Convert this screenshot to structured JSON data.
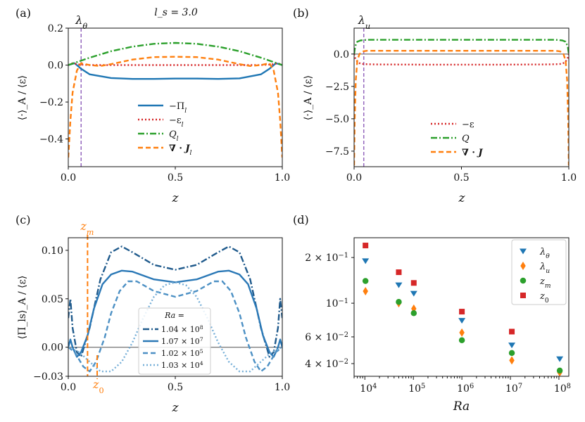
{
  "chart_data": [
    {
      "panel": "(a)",
      "type": "line",
      "title": "l_s = 3.0",
      "xlabel": "z",
      "ylabel": "⟨·⟩_A / ⟨ε⟩",
      "xlim": [
        0.0,
        1.0
      ],
      "ylim": [
        -0.55,
        0.2
      ],
      "xticks": [
        "0.0",
        "0.5",
        "1.0"
      ],
      "yticks": [
        "0.2",
        "0.0",
        "−0.2",
        "−0.4"
      ],
      "vline": {
        "label": "λθ",
        "x": 0.06
      },
      "series": [
        {
          "name": "−Π_ls",
          "x": [
            0,
            0.03,
            0.06,
            0.1,
            0.2,
            0.3,
            0.4,
            0.5,
            0.6,
            0.7,
            0.8,
            0.9,
            0.94,
            0.97,
            1.0
          ],
          "y": [
            0.0,
            0.01,
            -0.02,
            -0.05,
            -0.07,
            -0.075,
            -0.075,
            -0.073,
            -0.073,
            -0.075,
            -0.072,
            -0.05,
            -0.02,
            0.01,
            0.0
          ]
        },
        {
          "name": "−ε_ls",
          "x": [
            0,
            0.02,
            0.05,
            0.1,
            0.3,
            0.5,
            0.7,
            0.9,
            0.95,
            0.98,
            1.0
          ],
          "y": [
            0.0,
            0.01,
            0.003,
            0.0,
            0.0,
            0.0,
            0.0,
            0.0,
            0.003,
            0.01,
            0.0
          ]
        },
        {
          "name": "Q_ls",
          "x": [
            0,
            0.1,
            0.2,
            0.3,
            0.4,
            0.5,
            0.6,
            0.7,
            0.8,
            0.9,
            1.0
          ],
          "y": [
            0.0,
            0.04,
            0.075,
            0.1,
            0.115,
            0.12,
            0.115,
            0.1,
            0.075,
            0.04,
            0.0
          ]
        },
        {
          "name": "∇·J_ls",
          "x": [
            0,
            0.005,
            0.01,
            0.02,
            0.04,
            0.06,
            0.1,
            0.15,
            0.2,
            0.3,
            0.4,
            0.5,
            0.6,
            0.7,
            0.8,
            0.85,
            0.9,
            0.94,
            0.96,
            0.98,
            0.99,
            0.995,
            1.0
          ],
          "y": [
            -0.5,
            -0.4,
            -0.3,
            -0.15,
            -0.03,
            0.01,
            0.0,
            -0.005,
            0.005,
            0.03,
            0.043,
            0.045,
            0.043,
            0.03,
            0.005,
            -0.005,
            0.0,
            0.01,
            -0.03,
            -0.15,
            -0.3,
            -0.4,
            -0.5
          ]
        }
      ]
    },
    {
      "panel": "(b)",
      "type": "line",
      "xlabel": "z",
      "ylabel": "⟨·⟩_A / ⟨ε⟩",
      "xlim": [
        0.0,
        1.0
      ],
      "ylim": [
        -8.7,
        2.0
      ],
      "xticks": [
        "0.0",
        "0.5",
        "1.0"
      ],
      "yticks": [
        "0.0",
        "−2.5",
        "−5.0",
        "−7.5"
      ],
      "vline": {
        "label": "λu",
        "x": 0.045
      },
      "series": [
        {
          "name": "−ε",
          "x": [
            0,
            0.005,
            0.015,
            0.03,
            0.05,
            0.1,
            0.3,
            0.5,
            0.7,
            0.9,
            0.95,
            0.97,
            0.985,
            0.995,
            1.0
          ],
          "y": [
            0.0,
            -0.3,
            -0.6,
            -0.75,
            -0.78,
            -0.8,
            -0.82,
            -0.82,
            -0.82,
            -0.8,
            -0.78,
            -0.75,
            -0.6,
            -0.3,
            0.0
          ]
        },
        {
          "name": "Q",
          "x": [
            0,
            0.005,
            0.015,
            0.03,
            0.06,
            0.5,
            0.94,
            0.97,
            0.985,
            0.995,
            1.0
          ],
          "y": [
            0.0,
            0.6,
            0.95,
            1.05,
            1.1,
            1.1,
            1.1,
            1.05,
            0.95,
            0.6,
            0.0
          ]
        },
        {
          "name": "∇·J",
          "x": [
            0,
            0.003,
            0.008,
            0.015,
            0.025,
            0.04,
            0.06,
            0.5,
            0.94,
            0.96,
            0.975,
            0.985,
            0.992,
            0.997,
            1.0
          ],
          "y": [
            -8.6,
            -5.0,
            -2.0,
            -0.5,
            0.0,
            0.2,
            0.25,
            0.25,
            0.25,
            0.2,
            0.0,
            -0.5,
            -2.0,
            -5.0,
            -8.6
          ]
        }
      ],
      "zero_line": true
    },
    {
      "panel": "(c)",
      "type": "line",
      "xlabel": "z",
      "ylabel": "⟨Π_ls⟩_A / ⟨ε⟩",
      "xlim": [
        0.0,
        1.0
      ],
      "ylim": [
        -0.03,
        0.113
      ],
      "xticks": [
        "0.0",
        "0.5",
        "1.0"
      ],
      "yticks": [
        "0.10",
        "0.05",
        "0.00",
        "−0.03"
      ],
      "legend_title": "Ra =",
      "markers": [
        {
          "label": "z_m",
          "x": 0.09
        },
        {
          "label": "z_0",
          "x": 0.135
        }
      ],
      "series": [
        {
          "name": "1.04 × 10^8",
          "x": [
            0,
            0.01,
            0.02,
            0.04,
            0.06,
            0.1,
            0.15,
            0.2,
            0.25,
            0.3,
            0.4,
            0.5,
            0.6,
            0.7,
            0.75,
            0.8,
            0.85,
            0.9,
            0.94,
            0.96,
            0.98,
            0.99,
            1.0
          ],
          "y": [
            0.03,
            0.05,
            0.02,
            -0.005,
            -0.01,
            0.02,
            0.07,
            0.098,
            0.104,
            0.098,
            0.085,
            0.08,
            0.085,
            0.098,
            0.104,
            0.098,
            0.07,
            0.02,
            -0.01,
            -0.005,
            0.02,
            0.05,
            0.03
          ]
        },
        {
          "name": "1.07 × 10^7",
          "x": [
            0,
            0.01,
            0.02,
            0.04,
            0.06,
            0.09,
            0.12,
            0.16,
            0.2,
            0.25,
            0.3,
            0.4,
            0.5,
            0.6,
            0.7,
            0.75,
            0.8,
            0.84,
            0.88,
            0.91,
            0.94,
            0.96,
            0.98,
            0.99,
            1.0
          ],
          "y": [
            0.0,
            0.008,
            0.0,
            -0.01,
            -0.005,
            0.012,
            0.04,
            0.065,
            0.075,
            0.079,
            0.078,
            0.07,
            0.067,
            0.07,
            0.078,
            0.079,
            0.075,
            0.065,
            0.04,
            0.012,
            -0.005,
            -0.01,
            0.0,
            0.008,
            0.0
          ]
        },
        {
          "name": "1.02 × 10^5",
          "x": [
            0,
            0.03,
            0.07,
            0.1,
            0.13,
            0.17,
            0.2,
            0.24,
            0.28,
            0.32,
            0.4,
            0.5,
            0.6,
            0.68,
            0.72,
            0.76,
            0.8,
            0.83,
            0.87,
            0.9,
            0.93,
            0.97,
            1.0
          ],
          "y": [
            0.0,
            -0.005,
            -0.02,
            -0.025,
            -0.015,
            0.01,
            0.035,
            0.058,
            0.068,
            0.068,
            0.058,
            0.052,
            0.058,
            0.068,
            0.068,
            0.058,
            0.035,
            0.01,
            -0.015,
            -0.025,
            -0.02,
            -0.005,
            0.0
          ]
        },
        {
          "name": "1.03 × 10^4",
          "x": [
            0,
            0.05,
            0.1,
            0.15,
            0.2,
            0.25,
            0.3,
            0.35,
            0.4,
            0.45,
            0.5,
            0.55,
            0.6,
            0.65,
            0.7,
            0.75,
            0.8,
            0.85,
            0.9,
            0.95,
            1.0
          ],
          "y": [
            0.0,
            -0.005,
            -0.015,
            -0.025,
            -0.025,
            -0.015,
            0.005,
            0.03,
            0.052,
            0.064,
            0.067,
            0.064,
            0.052,
            0.03,
            0.005,
            -0.015,
            -0.025,
            -0.025,
            -0.015,
            -0.005,
            0.0
          ]
        }
      ]
    },
    {
      "panel": "(d)",
      "type": "scatter",
      "xlabel": "Ra",
      "xscale": "log",
      "yscale": "log",
      "xlim": [
        6000,
        160000000
      ],
      "ylim": [
        0.033,
        0.27
      ],
      "xticks": [
        "10^4",
        "10^5",
        "10^6",
        "10^7",
        "10^8"
      ],
      "yticks": [
        "2 × 10^−1",
        "10^−1",
        "6 × 10^−2",
        "4 × 10^−2"
      ],
      "ra": [
        10300,
        50000,
        102000,
        1000000,
        10700000,
        104000000
      ],
      "series": [
        {
          "name": "λθ",
          "values": [
            0.19,
            0.132,
            0.116,
            0.077,
            0.053,
            0.043
          ]
        },
        {
          "name": "λu",
          "values": [
            0.12,
            0.1,
            0.092,
            0.064,
            0.042,
            0.035
          ]
        },
        {
          "name": "z_m",
          "values": [
            0.14,
            0.102,
            0.086,
            0.057,
            0.047,
            0.036
          ]
        },
        {
          "name": "z_0",
          "values": [
            0.24,
            0.16,
            0.136,
            0.088,
            0.065,
            null
          ]
        }
      ]
    }
  ],
  "colors": {
    "blue": "#1f77b4",
    "red": "#d62728",
    "green": "#2ca02c",
    "orange": "#ff7f0e",
    "purple": "#9467bd",
    "grey": "#808080",
    "c_blue1": "#1f5a8c",
    "c_blue2": "#2a78b6",
    "c_blue3": "#4c90c4",
    "c_blue4": "#76afd8"
  }
}
